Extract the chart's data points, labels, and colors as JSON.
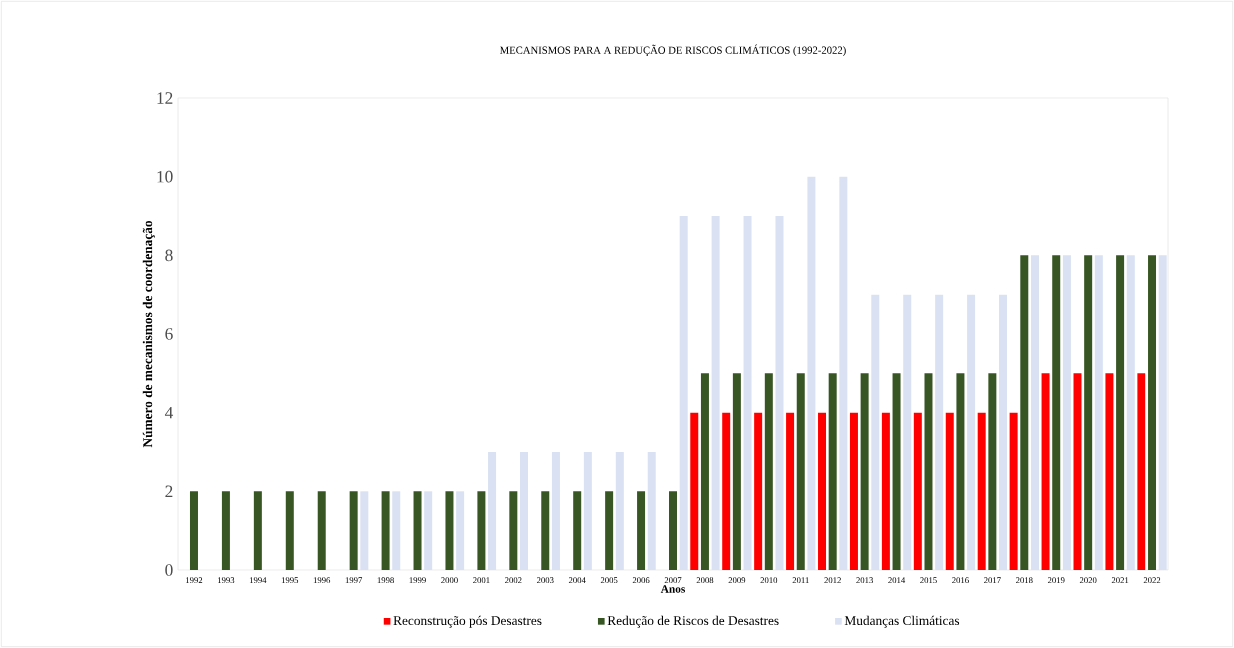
{
  "chart_data": {
    "type": "bar",
    "title": "MECANISMOS PARA A REDUÇÃO DE RISCOS CLIMÁTICOS (1992-2022)",
    "xlabel": "Anos",
    "ylabel": "Número de mecanismos de coordenação",
    "categories": [
      "1992",
      "1993",
      "1994",
      "1995",
      "1996",
      "1997",
      "1998",
      "1999",
      "2000",
      "2001",
      "2002",
      "2003",
      "2004",
      "2005",
      "2006",
      "2007",
      "2008",
      "2009",
      "2010",
      "2011",
      "2012",
      "2013",
      "2014",
      "2015",
      "2016",
      "2017",
      "2018",
      "2019",
      "2020",
      "2021",
      "2022"
    ],
    "series": [
      {
        "name": "Reconstrução pós Desastres",
        "color": "#ff0000",
        "values": [
          0,
          0,
          0,
          0,
          0,
          0,
          0,
          0,
          0,
          0,
          0,
          0,
          0,
          0,
          0,
          0,
          4,
          4,
          4,
          4,
          4,
          4,
          4,
          4,
          4,
          4,
          4,
          5,
          5,
          5,
          5
        ]
      },
      {
        "name": "Redução de Riscos de Desastres",
        "color": "#375623",
        "values": [
          2,
          2,
          2,
          2,
          2,
          2,
          2,
          2,
          2,
          2,
          2,
          2,
          2,
          2,
          2,
          2,
          5,
          5,
          5,
          5,
          5,
          5,
          5,
          5,
          5,
          5,
          8,
          8,
          8,
          8,
          8
        ]
      },
      {
        "name": "Mudanças Climáticas",
        "color": "#d9e1f2",
        "values": [
          0,
          0,
          0,
          0,
          0,
          2,
          2,
          2,
          2,
          3,
          3,
          3,
          3,
          3,
          3,
          9,
          9,
          9,
          9,
          10,
          10,
          7,
          7,
          7,
          7,
          7,
          8,
          8,
          8,
          8,
          8
        ]
      }
    ],
    "ylim": [
      0,
      12
    ],
    "yticks": [
      0,
      2,
      4,
      6,
      8,
      10,
      12
    ],
    "legend": "bottom"
  }
}
